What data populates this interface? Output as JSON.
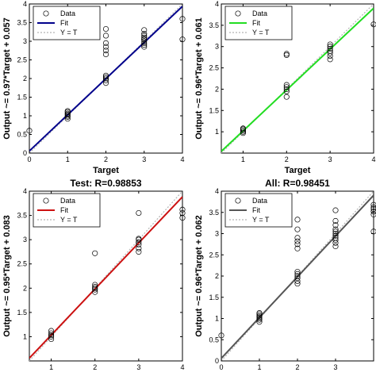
{
  "chart_data": [
    {
      "type": "scatter",
      "title": "",
      "xlabel": "Target",
      "ylabel": "Output ~= 0.97*Target + 0.057",
      "xlim": [
        0,
        4
      ],
      "ylim": [
        0,
        4
      ],
      "xticks": [
        "0",
        "1",
        "2",
        "3",
        "4"
      ],
      "yticks": [
        "0",
        "0.5",
        "1",
        "1.5",
        "2",
        "2.5",
        "3",
        "3.5",
        "4"
      ],
      "grid": false,
      "legend": {
        "position": "top-left",
        "entries": [
          "Data",
          "Fit",
          "Y = T"
        ]
      },
      "fit": {
        "slope": 0.97,
        "intercept": 0.057,
        "color": "#00008b"
      },
      "data": {
        "x": [
          0,
          1,
          1,
          1,
          1,
          1,
          1,
          1,
          2,
          2,
          2,
          2,
          2,
          2,
          2,
          2,
          2,
          2,
          2,
          3,
          3,
          3,
          3,
          3,
          3,
          3,
          3,
          3,
          3,
          4,
          4
        ],
        "y": [
          0.6,
          0.92,
          0.97,
          1.0,
          1.03,
          1.06,
          1.1,
          1.13,
          1.88,
          1.95,
          2.0,
          2.04,
          2.08,
          2.65,
          2.75,
          2.85,
          2.95,
          3.15,
          3.33,
          2.85,
          2.9,
          2.95,
          3.0,
          3.05,
          3.1,
          3.15,
          3.2,
          3.3,
          3.05,
          3.05,
          3.6
        ]
      }
    },
    {
      "type": "scatter",
      "title": "",
      "xlabel": "Target",
      "ylabel": "Output ~= 0.96*Target + 0.061",
      "xlim": [
        0.5,
        4
      ],
      "ylim": [
        0.5,
        4
      ],
      "xticks": [
        "1",
        "2",
        "3",
        "4"
      ],
      "yticks": [
        "1",
        "1.5",
        "2",
        "2.5",
        "3",
        "3.5",
        "4"
      ],
      "grid": false,
      "legend": {
        "position": "top-left",
        "entries": [
          "Data",
          "Fit",
          "Y = T"
        ]
      },
      "fit": {
        "slope": 0.96,
        "intercept": 0.061,
        "color": "#22dd22"
      },
      "data": {
        "x": [
          1,
          1,
          1,
          1,
          1,
          2,
          2,
          2,
          2,
          2,
          2,
          2,
          3,
          3,
          3,
          3,
          3,
          3,
          3,
          4
        ],
        "y": [
          0.97,
          1.0,
          1.03,
          1.06,
          1.08,
          1.82,
          1.95,
          2.0,
          2.05,
          2.1,
          2.8,
          2.83,
          2.7,
          2.78,
          2.85,
          2.9,
          2.95,
          3.0,
          3.05,
          3.52
        ]
      }
    },
    {
      "type": "scatter",
      "title": "Test: R=0.98853",
      "xlabel": "",
      "ylabel": "Output ~= 0.95*Target + 0.083",
      "xlim": [
        0.5,
        4
      ],
      "ylim": [
        0.5,
        4
      ],
      "xticks": [
        "1",
        "2",
        "3",
        "4"
      ],
      "yticks": [
        "1",
        "1.5",
        "2",
        "2.5",
        "3",
        "3.5",
        "4"
      ],
      "grid": false,
      "legend": {
        "position": "top-left",
        "entries": [
          "Data",
          "Fit",
          "Y = T"
        ]
      },
      "fit": {
        "slope": 0.95,
        "intercept": 0.083,
        "color": "#cc1111"
      },
      "data": {
        "x": [
          1,
          1,
          1,
          1,
          1,
          2,
          2,
          2,
          2,
          2,
          2,
          3,
          3,
          3,
          3,
          3,
          3,
          3,
          4,
          4,
          4
        ],
        "y": [
          0.95,
          1.0,
          1.03,
          1.07,
          1.12,
          1.92,
          1.97,
          2.0,
          2.03,
          2.07,
          2.72,
          2.75,
          2.82,
          2.9,
          2.95,
          3.0,
          3.02,
          3.55,
          3.45,
          3.55,
          3.62
        ]
      }
    },
    {
      "type": "scatter",
      "title": "All: R=0.98451",
      "xlabel": "",
      "ylabel": "Output ~= 0.96*Target + 0.062",
      "xlim": [
        0,
        4
      ],
      "ylim": [
        0,
        4
      ],
      "xticks": [
        "0",
        "1",
        "2",
        "3"
      ],
      "yticks": [
        "0",
        "0.5",
        "1",
        "1.5",
        "2",
        "2.5",
        "3",
        "3.5",
        "4"
      ],
      "grid": false,
      "legend": {
        "position": "top-left",
        "entries": [
          "Data",
          "Fit",
          "Y = T"
        ]
      },
      "fit": {
        "slope": 0.96,
        "intercept": 0.062,
        "color": "#555555"
      },
      "data": {
        "x": [
          0,
          1,
          1,
          1,
          1,
          1,
          1,
          1,
          2,
          2,
          2,
          2,
          2,
          2,
          2,
          2,
          2,
          2,
          2,
          2,
          3,
          3,
          3,
          3,
          3,
          3,
          3,
          3,
          3,
          3,
          3,
          4,
          4,
          4,
          4,
          4,
          4
        ],
        "y": [
          0.6,
          0.92,
          0.97,
          1.0,
          1.03,
          1.06,
          1.1,
          1.13,
          1.82,
          1.88,
          1.95,
          2.0,
          2.05,
          2.1,
          2.65,
          2.75,
          2.82,
          2.9,
          3.1,
          3.33,
          2.7,
          2.78,
          2.85,
          2.9,
          2.95,
          3.0,
          3.05,
          3.1,
          3.2,
          3.3,
          3.55,
          3.05,
          3.45,
          3.52,
          3.58,
          3.62,
          3.68
        ]
      }
    }
  ]
}
